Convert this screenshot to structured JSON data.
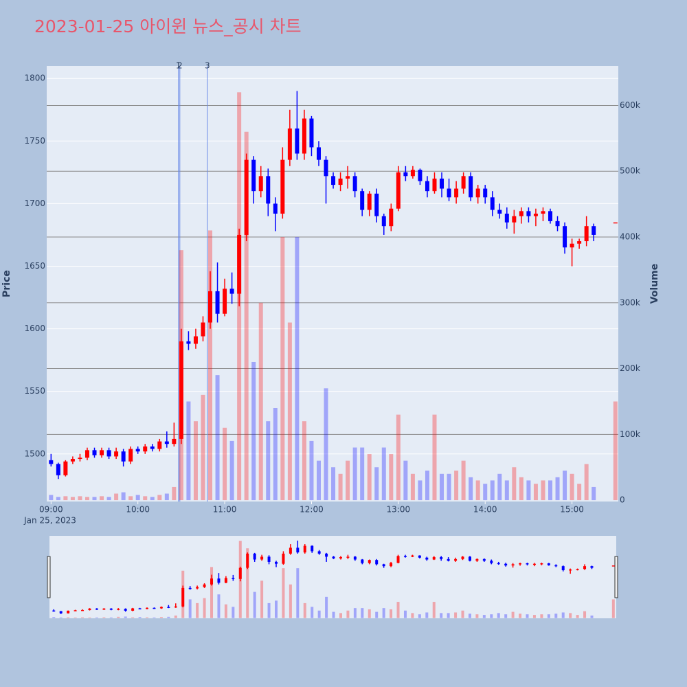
{
  "chart_data": {
    "type": "candlestick",
    "title": "2023-01-25 아이윈 뉴스_공시 차트",
    "y_axis_label": "Price",
    "y2_axis_label": "Volume",
    "x_date_label": "Jan 25, 2023",
    "up_color": "#ff0000",
    "down_color": "#0000ff",
    "volume_up_color": "rgba(255,0,0,0.3)",
    "volume_down_color": "rgba(0,0,255,0.3)",
    "x": [
      "2023-01-25 09:00",
      "2023-01-25 09:05",
      "2023-01-25 09:10",
      "2023-01-25 09:15",
      "2023-01-25 09:20",
      "2023-01-25 09:25",
      "2023-01-25 09:30",
      "2023-01-25 09:35",
      "2023-01-25 09:40",
      "2023-01-25 09:45",
      "2023-01-25 09:50",
      "2023-01-25 09:55",
      "2023-01-25 10:00",
      "2023-01-25 10:05",
      "2023-01-25 10:10",
      "2023-01-25 10:15",
      "2023-01-25 10:20",
      "2023-01-25 10:25",
      "2023-01-25 10:30",
      "2023-01-25 10:35",
      "2023-01-25 10:40",
      "2023-01-25 10:45",
      "2023-01-25 10:50",
      "2023-01-25 10:55",
      "2023-01-25 11:00",
      "2023-01-25 11:05",
      "2023-01-25 11:10",
      "2023-01-25 11:15",
      "2023-01-25 11:20",
      "2023-01-25 11:25",
      "2023-01-25 11:30",
      "2023-01-25 11:35",
      "2023-01-25 11:40",
      "2023-01-25 11:45",
      "2023-01-25 11:50",
      "2023-01-25 11:55",
      "2023-01-25 12:00",
      "2023-01-25 12:05",
      "2023-01-25 12:10",
      "2023-01-25 12:15",
      "2023-01-25 12:20",
      "2023-01-25 12:25",
      "2023-01-25 12:30",
      "2023-01-25 12:35",
      "2023-01-25 12:40",
      "2023-01-25 12:45",
      "2023-01-25 12:50",
      "2023-01-25 12:55",
      "2023-01-25 13:00",
      "2023-01-25 13:05",
      "2023-01-25 13:10",
      "2023-01-25 13:15",
      "2023-01-25 13:20",
      "2023-01-25 13:25",
      "2023-01-25 13:30",
      "2023-01-25 13:35",
      "2023-01-25 13:40",
      "2023-01-25 13:45",
      "2023-01-25 13:50",
      "2023-01-25 13:55",
      "2023-01-25 14:00",
      "2023-01-25 14:05",
      "2023-01-25 14:10",
      "2023-01-25 14:15",
      "2023-01-25 14:20",
      "2023-01-25 14:25",
      "2023-01-25 14:30",
      "2023-01-25 14:35",
      "2023-01-25 14:40",
      "2023-01-25 14:45",
      "2023-01-25 14:50",
      "2023-01-25 14:55",
      "2023-01-25 15:00",
      "2023-01-25 15:05",
      "2023-01-25 15:10",
      "2023-01-25 15:15",
      "2023-01-25 15:30"
    ],
    "open": [
      1495,
      1492,
      1483,
      1494,
      1496,
      1497,
      1503,
      1499,
      1503,
      1498,
      1502,
      1494,
      1504,
      1502,
      1506,
      1504,
      1510,
      1508,
      1512,
      1590,
      1588,
      1594,
      1605,
      1630,
      1612,
      1632,
      1628,
      1675,
      1735,
      1710,
      1722,
      1700,
      1692,
      1735,
      1760,
      1740,
      1768,
      1745,
      1735,
      1722,
      1715,
      1720,
      1722,
      1710,
      1695,
      1708,
      1690,
      1682,
      1696,
      1725,
      1722,
      1727,
      1718,
      1710,
      1720,
      1712,
      1705,
      1712,
      1722,
      1705,
      1712,
      1705,
      1695,
      1692,
      1685,
      1690,
      1694,
      1690,
      1692,
      1694,
      1686,
      1682,
      1665,
      1668,
      1670,
      1682,
      1685
    ],
    "high": [
      1500,
      1493,
      1495,
      1498,
      1500,
      1505,
      1505,
      1505,
      1505,
      1505,
      1504,
      1506,
      1506,
      1508,
      1508,
      1512,
      1518,
      1525,
      1600,
      1598,
      1600,
      1610,
      1646,
      1653,
      1640,
      1645,
      1680,
      1740,
      1738,
      1730,
      1728,
      1705,
      1745,
      1775,
      1790,
      1775,
      1770,
      1750,
      1738,
      1725,
      1725,
      1730,
      1725,
      1712,
      1710,
      1712,
      1692,
      1700,
      1730,
      1730,
      1730,
      1728,
      1722,
      1725,
      1725,
      1720,
      1718,
      1725,
      1725,
      1715,
      1715,
      1710,
      1700,
      1697,
      1695,
      1697,
      1697,
      1696,
      1697,
      1696,
      1690,
      1685,
      1672,
      1672,
      1690,
      1684,
      1685
    ],
    "low": [
      1490,
      1480,
      1482,
      1492,
      1494,
      1495,
      1497,
      1497,
      1496,
      1496,
      1490,
      1492,
      1500,
      1500,
      1502,
      1502,
      1505,
      1506,
      1508,
      1583,
      1584,
      1590,
      1600,
      1605,
      1610,
      1620,
      1618,
      1670,
      1700,
      1705,
      1690,
      1678,
      1688,
      1730,
      1735,
      1735,
      1738,
      1730,
      1700,
      1712,
      1710,
      1712,
      1705,
      1690,
      1690,
      1685,
      1675,
      1678,
      1694,
      1718,
      1720,
      1715,
      1705,
      1708,
      1705,
      1702,
      1700,
      1708,
      1702,
      1700,
      1700,
      1690,
      1688,
      1680,
      1676,
      1684,
      1685,
      1682,
      1686,
      1684,
      1678,
      1660,
      1650,
      1664,
      1666,
      1670,
      1685
    ],
    "close": [
      1492,
      1483,
      1494,
      1496,
      1497,
      1503,
      1499,
      1503,
      1498,
      1502,
      1494,
      1504,
      1502,
      1506,
      1504,
      1510,
      1508,
      1512,
      1590,
      1588,
      1594,
      1605,
      1630,
      1612,
      1632,
      1628,
      1675,
      1735,
      1710,
      1722,
      1700,
      1692,
      1735,
      1760,
      1740,
      1768,
      1745,
      1735,
      1722,
      1715,
      1720,
      1722,
      1710,
      1695,
      1708,
      1690,
      1682,
      1696,
      1725,
      1722,
      1727,
      1718,
      1710,
      1720,
      1712,
      1705,
      1712,
      1722,
      1705,
      1712,
      1705,
      1695,
      1692,
      1685,
      1690,
      1694,
      1690,
      1692,
      1694,
      1686,
      1682,
      1665,
      1668,
      1670,
      1682,
      1675,
      1685
    ],
    "volume": [
      8000,
      5000,
      6000,
      5000,
      6000,
      5000,
      5000,
      6000,
      5000,
      10000,
      12000,
      6000,
      8000,
      6000,
      5000,
      8000,
      10000,
      20000,
      380000,
      150000,
      120000,
      160000,
      410000,
      190000,
      110000,
      90000,
      620000,
      560000,
      210000,
      300000,
      120000,
      140000,
      400000,
      270000,
      400000,
      120000,
      90000,
      60000,
      170000,
      50000,
      40000,
      60000,
      80000,
      80000,
      70000,
      50000,
      80000,
      70000,
      130000,
      60000,
      40000,
      30000,
      45000,
      130000,
      40000,
      40000,
      45000,
      60000,
      35000,
      30000,
      25000,
      30000,
      40000,
      30000,
      50000,
      35000,
      30000,
      25000,
      30000,
      30000,
      35000,
      45000,
      40000,
      25000,
      55000,
      20000,
      150000
    ],
    "annotations": [
      {
        "x": "2023-01-25 10:28",
        "text": "1"
      },
      {
        "x": "2023-01-25 10:29",
        "text": "2"
      },
      {
        "x": "2023-01-25 10:48",
        "text": "3"
      }
    ],
    "xlim": [
      "2023-01-25 08:57",
      "2023-01-25 15:32"
    ],
    "xticks": [
      {
        "value": "2023-01-25 09:00",
        "label": "09:00"
      },
      {
        "value": "2023-01-25 10:00",
        "label": "10:00"
      },
      {
        "value": "2023-01-25 11:00",
        "label": "11:00"
      },
      {
        "value": "2023-01-25 12:00",
        "label": "12:00"
      },
      {
        "value": "2023-01-25 13:00",
        "label": "13:00"
      },
      {
        "value": "2023-01-25 14:00",
        "label": "14:00"
      },
      {
        "value": "2023-01-25 15:00",
        "label": "15:00"
      }
    ],
    "ylim": [
      1462,
      1810
    ],
    "yticks": [
      1500,
      1550,
      1600,
      1650,
      1700,
      1750,
      1800
    ],
    "y2lim": [
      -2000,
      660000
    ],
    "y2ticks": [
      0,
      {
        "value": 100000,
        "label": "100k"
      },
      {
        "value": 200000,
        "label": "200k"
      },
      {
        "value": 300000,
        "label": "300k"
      },
      {
        "value": 400000,
        "label": "400k"
      },
      {
        "value": 500000,
        "label": "500k"
      },
      {
        "value": 600000,
        "label": "600k"
      }
    ],
    "grid": true,
    "rangeslider": true
  }
}
